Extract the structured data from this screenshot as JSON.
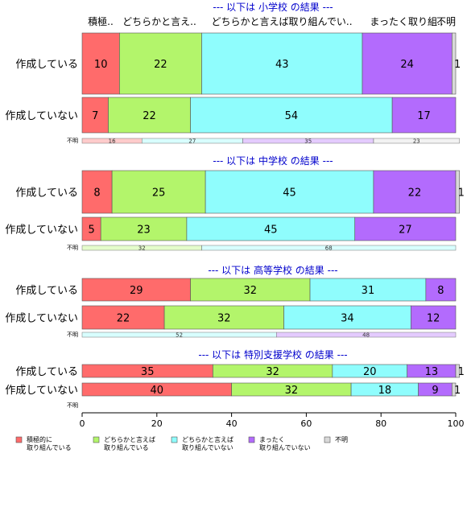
{
  "colors": {
    "積極的に取り組んでいる": "#ff6b6b",
    "どちらかと言えば取り組んでいる": "#b3f56b",
    "どちらかと言えば取り組んでいない": "#8ffdfd",
    "まったく取り組んでいない": "#b36bfd",
    "不明": "#d9d9d9"
  },
  "chart_data": {
    "type": "bar",
    "orientation": "horizontal-stacked-percent",
    "xlim": [
      0,
      100
    ],
    "xticks": [
      "0",
      "20",
      "40",
      "60",
      "80",
      "100"
    ],
    "top_labels": [
      "積極..",
      "どちらかと言え..",
      "どちらかと言えば取り組んでい..",
      "まったく取り組..",
      "不明"
    ],
    "legend": [
      {
        "key": "積極的に取り組んでいる",
        "line1": "積極的に",
        "line2": "取り組んでいる"
      },
      {
        "key": "どちらかと言えば取り組んでいる",
        "line1": "どちらかと言えば",
        "line2": "取り組んでいる"
      },
      {
        "key": "どちらかと言えば取り組んでいない",
        "line1": "どちらかと言えば",
        "line2": "取り組んでいない"
      },
      {
        "key": "まったく取り組んでいない",
        "line1": "まったく",
        "line2": "取り組んでいない"
      },
      {
        "key": "不明",
        "line1": "不明",
        "line2": ""
      }
    ],
    "panels": [
      {
        "title": "--- 以下は 小学校 の結果 ---",
        "rows": [
          {
            "label": "作成している",
            "values": [
              10,
              22,
              43,
              24,
              1
            ]
          },
          {
            "label": "作成していない",
            "values": [
              7,
              22,
              54,
              17,
              0
            ]
          }
        ],
        "unknown": {
          "label": "不明",
          "values": [
            16,
            0,
            27,
            35,
            23
          ]
        }
      },
      {
        "title": "--- 以下は 中学校 の結果 ---",
        "rows": [
          {
            "label": "作成している",
            "values": [
              8,
              25,
              45,
              22,
              1
            ]
          },
          {
            "label": "作成していない",
            "values": [
              5,
              23,
              45,
              27,
              0
            ]
          }
        ],
        "unknown": {
          "label": "不明",
          "values": [
            0,
            32,
            68,
            0,
            0
          ]
        }
      },
      {
        "title": "--- 以下は 高等学校 の結果 ---",
        "rows": [
          {
            "label": "作成している",
            "values": [
              29,
              32,
              31,
              8,
              0
            ]
          },
          {
            "label": "作成していない",
            "values": [
              22,
              32,
              34,
              12,
              0
            ]
          }
        ],
        "unknown": {
          "label": "不明",
          "values": [
            0,
            0,
            52,
            48,
            0
          ]
        }
      },
      {
        "title": "--- 以下は 特別支援学校 の結果 ---",
        "rows": [
          {
            "label": "作成している",
            "values": [
              35,
              32,
              20,
              13,
              1
            ]
          },
          {
            "label": "作成していない",
            "values": [
              40,
              32,
              18,
              9,
              1
            ]
          }
        ],
        "unknown": {
          "label": "不明",
          "values": [
            0,
            0,
            0,
            0,
            0
          ]
        }
      }
    ]
  }
}
